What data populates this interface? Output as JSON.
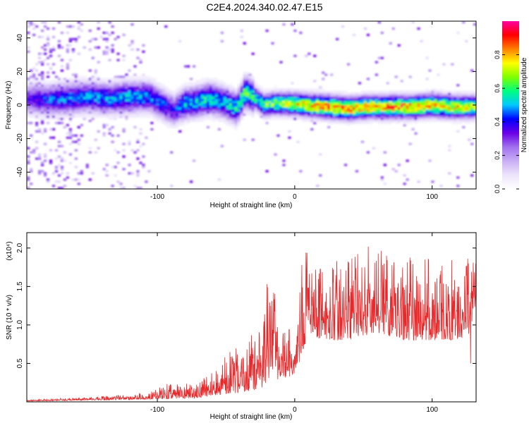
{
  "title": "C2E4.2024.340.02.47.E15",
  "colors": {
    "snr_line": "#e8282a",
    "frame": "#000000",
    "colormap_stops": [
      "#ffffff",
      "#ece4fb",
      "#c9aff5",
      "#a070ee",
      "#6a00e6",
      "#0000ff",
      "#00c8ff",
      "#00ff7f",
      "#7fff00",
      "#ffff00",
      "#ff8000",
      "#ff0000",
      "#ff00a0"
    ]
  },
  "chart_data": [
    {
      "type": "heatmap",
      "panel": "spectrogram",
      "xlabel": "Height of straight line (km)",
      "ylabel": "Frequency (Hz)",
      "xlim": [
        -195,
        132
      ],
      "ylim": [
        -50,
        50
      ],
      "x_ticks": [
        -100,
        0,
        100
      ],
      "x_tick_labels": [
        "-100",
        "0",
        "100"
      ],
      "y_ticks": [
        -40,
        -20,
        0,
        20,
        40
      ],
      "y_tick_labels": [
        "-40",
        "-20",
        "0",
        "20",
        "40"
      ],
      "grid": false,
      "colorbar": {
        "label": "Normalized spectral amplitude",
        "range": [
          0,
          1
        ],
        "ticks": [
          0.0,
          0.2,
          0.4,
          0.6,
          0.8
        ],
        "tick_labels": [
          "0.0",
          "0.2",
          "0.4",
          "0.6",
          "0.8"
        ]
      },
      "ridge": [
        {
          "x": -195,
          "f": 4,
          "amp": 0.35
        },
        {
          "x": -180,
          "f": 3,
          "amp": 0.45
        },
        {
          "x": -165,
          "f": 4,
          "amp": 0.5
        },
        {
          "x": -150,
          "f": 5,
          "amp": 0.5
        },
        {
          "x": -135,
          "f": 4,
          "amp": 0.5
        },
        {
          "x": -120,
          "f": 5,
          "amp": 0.55
        },
        {
          "x": -105,
          "f": 5,
          "amp": 0.5
        },
        {
          "x": -95,
          "f": 0,
          "amp": 0.45
        },
        {
          "x": -88,
          "f": -3,
          "amp": 0.4
        },
        {
          "x": -80,
          "f": 1,
          "amp": 0.55
        },
        {
          "x": -72,
          "f": 2,
          "amp": 0.55
        },
        {
          "x": -62,
          "f": 4,
          "amp": 0.6
        },
        {
          "x": -52,
          "f": 2,
          "amp": 0.55
        },
        {
          "x": -42,
          "f": -2,
          "amp": 0.6
        },
        {
          "x": -36,
          "f": 8,
          "amp": 0.7
        },
        {
          "x": -30,
          "f": 5,
          "amp": 0.6
        },
        {
          "x": -22,
          "f": 0,
          "amp": 0.65
        },
        {
          "x": -15,
          "f": 1,
          "amp": 0.7
        },
        {
          "x": -5,
          "f": 1,
          "amp": 0.75
        },
        {
          "x": 10,
          "f": 0,
          "amp": 0.85
        },
        {
          "x": 25,
          "f": -1,
          "amp": 0.9
        },
        {
          "x": 40,
          "f": -2,
          "amp": 0.9
        },
        {
          "x": 55,
          "f": -1,
          "amp": 0.85
        },
        {
          "x": 70,
          "f": -1,
          "amp": 0.9
        },
        {
          "x": 85,
          "f": -1,
          "amp": 0.88
        },
        {
          "x": 100,
          "f": 0,
          "amp": 0.85
        },
        {
          "x": 115,
          "f": -1,
          "amp": 0.8
        },
        {
          "x": 132,
          "f": -1,
          "amp": 0.75
        }
      ]
    },
    {
      "type": "line",
      "panel": "snr",
      "xlabel": "Height of straight line (km)",
      "ylabel": "SNR (10 * v/v)",
      "y_scale_label": "(x10⁴)",
      "xlim": [
        -195,
        132
      ],
      "ylim": [
        0,
        2.2
      ],
      "x_ticks": [
        -100,
        0,
        100
      ],
      "x_tick_labels": [
        "-100",
        "0",
        "100"
      ],
      "y_ticks": [
        0.5,
        1.0,
        1.5,
        2.0
      ],
      "y_tick_labels": [
        "0.5",
        "1.0",
        "1.5",
        "2.0"
      ],
      "grid": false,
      "envelope": [
        {
          "x": -195,
          "base": 0.01,
          "peak": 0.03
        },
        {
          "x": -150,
          "base": 0.02,
          "peak": 0.06
        },
        {
          "x": -110,
          "base": 0.03,
          "peak": 0.12
        },
        {
          "x": -90,
          "base": 0.04,
          "peak": 0.25
        },
        {
          "x": -70,
          "base": 0.05,
          "peak": 0.25
        },
        {
          "x": -60,
          "base": 0.08,
          "peak": 0.4
        },
        {
          "x": -50,
          "base": 0.1,
          "peak": 0.7
        },
        {
          "x": -40,
          "base": 0.12,
          "peak": 0.7
        },
        {
          "x": -30,
          "base": 0.15,
          "peak": 0.9
        },
        {
          "x": -20,
          "base": 0.2,
          "peak": 1.7
        },
        {
          "x": -10,
          "base": 0.3,
          "peak": 1.2
        },
        {
          "x": 0,
          "base": 0.35,
          "peak": 0.8
        },
        {
          "x": 5,
          "base": 0.6,
          "peak": 1.8
        },
        {
          "x": 10,
          "base": 0.9,
          "peak": 2.2
        },
        {
          "x": 20,
          "base": 0.8,
          "peak": 1.8
        },
        {
          "x": 30,
          "base": 0.8,
          "peak": 1.9
        },
        {
          "x": 40,
          "base": 0.8,
          "peak": 2.0
        },
        {
          "x": 60,
          "base": 0.9,
          "peak": 2.05
        },
        {
          "x": 80,
          "base": 0.8,
          "peak": 1.95
        },
        {
          "x": 100,
          "base": 0.8,
          "peak": 1.85
        },
        {
          "x": 120,
          "base": 0.8,
          "peak": 1.85
        },
        {
          "x": 132,
          "base": 0.9,
          "peak": 1.9
        }
      ],
      "dropouts": [
        {
          "x": 128,
          "y": 0.5
        }
      ]
    }
  ]
}
